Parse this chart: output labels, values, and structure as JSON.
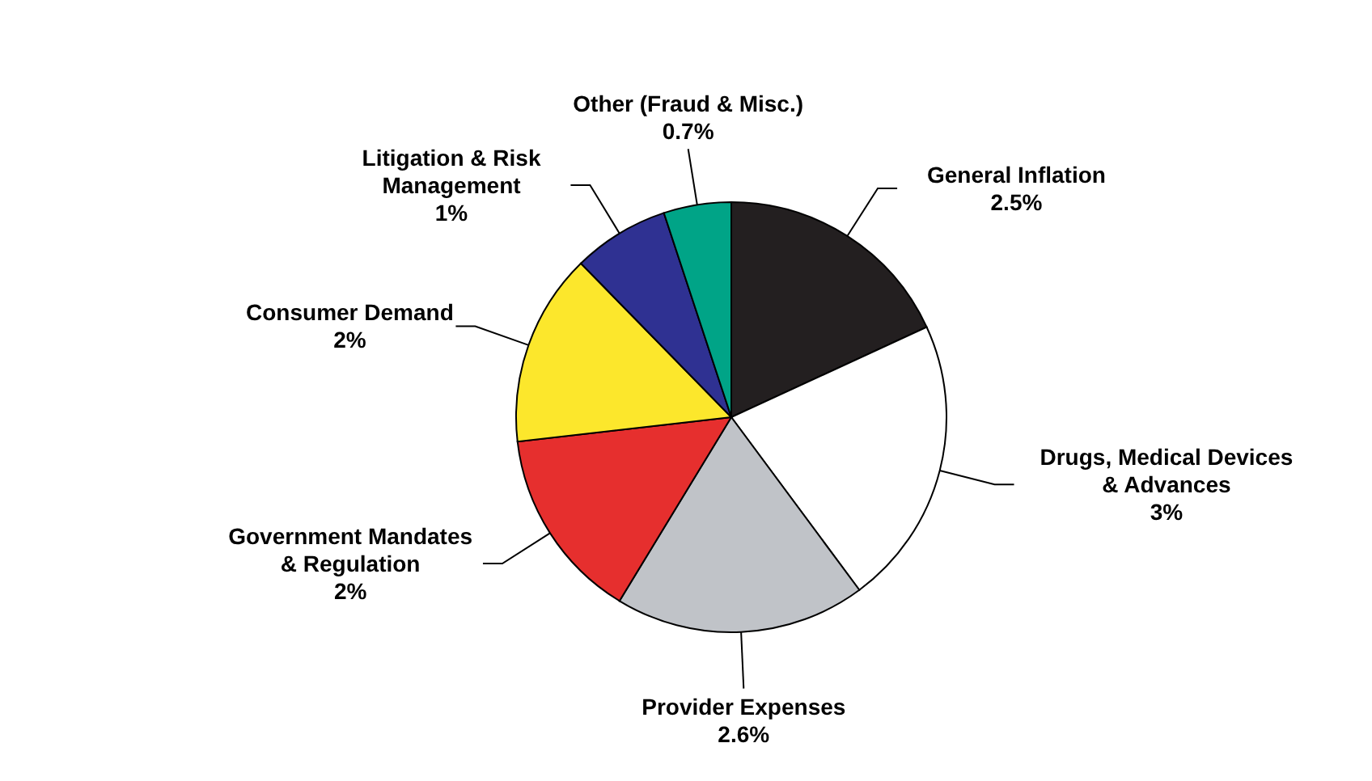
{
  "chart_data": {
    "type": "pie",
    "categories": [
      "General Inflation",
      "Drugs, Medical Devices\n& Advances",
      "Provider Expenses",
      "Government Mandates\n& Regulation",
      "Consumer Demand",
      "Litigation & Risk\nManagement",
      "Other (Fraud & Misc.)"
    ],
    "values": [
      2.5,
      3,
      2.6,
      2,
      2,
      1,
      0.7
    ],
    "value_labels": [
      "2.5%",
      "3%",
      "2.6%",
      "2%",
      "2%",
      "1%",
      "0.7%"
    ],
    "colors": [
      "#231f20",
      "#ffffff",
      "#c0c3c8",
      "#e62f2e",
      "#fce72c",
      "#2f3192",
      "#00a487"
    ]
  }
}
